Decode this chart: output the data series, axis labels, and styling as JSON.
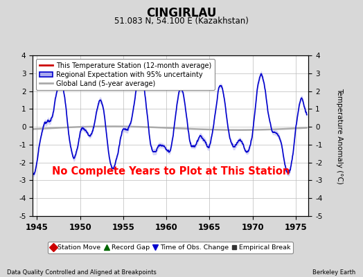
{
  "title": "CINGIRLAU",
  "subtitle": "51.083 N, 54.100 E (Kazakhstan)",
  "ylabel": "Temperature Anomaly (°C)",
  "xlabel_bottom_left": "Data Quality Controlled and Aligned at Breakpoints",
  "xlabel_bottom_right": "Berkeley Earth",
  "ylim": [
    -5,
    4
  ],
  "xlim": [
    1944.5,
    1976.5
  ],
  "yticks": [
    -5,
    -4,
    -3,
    -2,
    -1,
    0,
    1,
    2,
    3,
    4
  ],
  "xticks": [
    1945,
    1950,
    1955,
    1960,
    1965,
    1970,
    1975
  ],
  "background_color": "#d8d8d8",
  "plot_bg_color": "#ffffff",
  "grid_color": "#bbbbbb",
  "no_data_text": "No Complete Years to Plot at This Station",
  "no_data_color": "#ff0000",
  "blue_line_color": "#0000cc",
  "band_color": "#aaaaee",
  "band_alpha": 0.5,
  "gray_line_color": "#aaaaaa",
  "red_line_color": "#cc0000",
  "legend_labels": [
    "This Temperature Station (12-month average)",
    "Regional Expectation with 95% uncertainty",
    "Global Land (5-year average)"
  ],
  "bottom_legend_items": [
    {
      "label": "Station Move",
      "color": "#cc0000",
      "marker": "D",
      "markersize": 6
    },
    {
      "label": "Record Gap",
      "color": "#006600",
      "marker": "^",
      "markersize": 6
    },
    {
      "label": "Time of Obs. Change",
      "color": "#0000cc",
      "marker": "v",
      "markersize": 6
    },
    {
      "label": "Empirical Break",
      "color": "#333333",
      "marker": "s",
      "markersize": 5
    }
  ]
}
